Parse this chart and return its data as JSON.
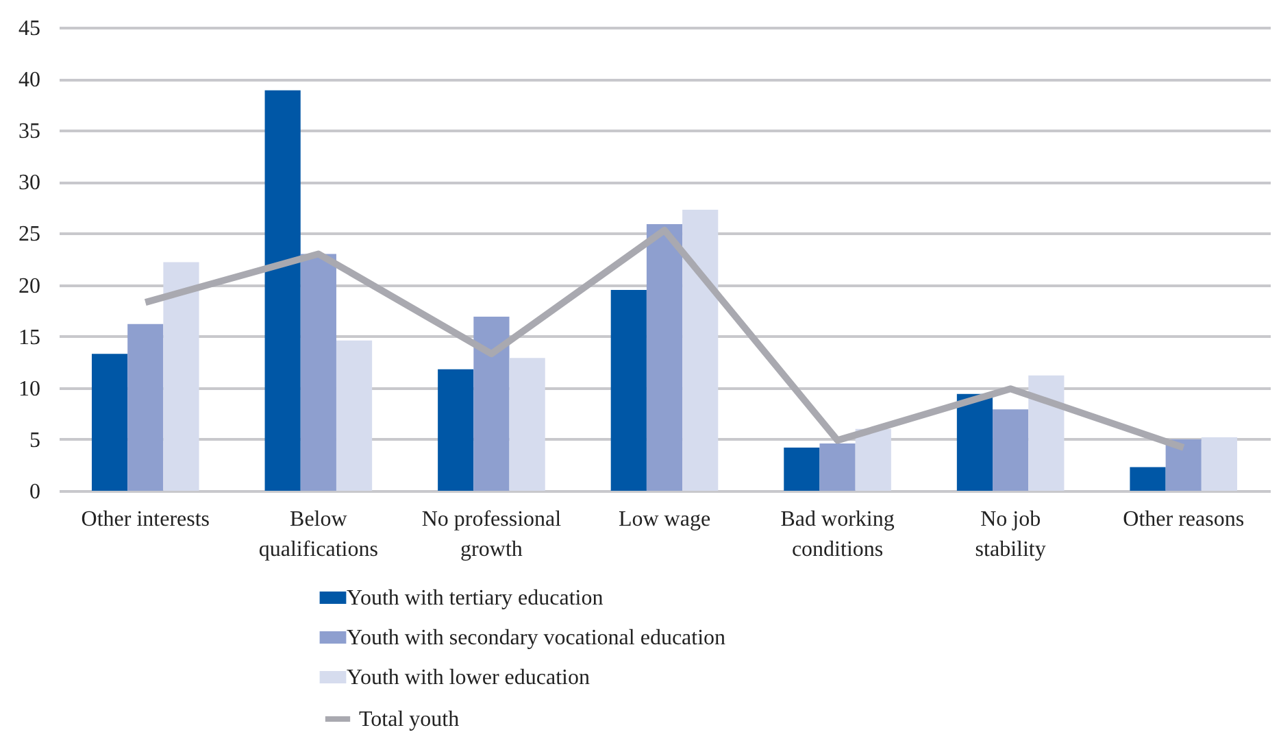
{
  "chart_data": {
    "type": "bar",
    "categories": [
      "Other interests",
      "Below qualifications",
      "No professional growth",
      "Low wage",
      "Bad working conditions",
      "No job stability",
      "Other reasons"
    ],
    "series": [
      {
        "name": "Youth with tertiary education",
        "color": "#0057a6",
        "values": [
          13.3,
          38.9,
          11.8,
          19.5,
          4.2,
          9.4,
          2.3
        ]
      },
      {
        "name": "Youth with secondary vocational education",
        "color": "#8e9fcf",
        "values": [
          16.2,
          23.0,
          16.9,
          25.9,
          4.6,
          7.9,
          5.0
        ]
      },
      {
        "name": "Youth with lower education",
        "color": "#d6dcee",
        "values": [
          22.2,
          14.6,
          12.9,
          27.3,
          6.0,
          11.2,
          5.2
        ]
      },
      {
        "name": "Total youth",
        "color": "#a9a9b0",
        "type": "line",
        "values": [
          18.3,
          23.0,
          13.3,
          25.3,
          4.9,
          9.9,
          4.2
        ]
      }
    ],
    "ylim": [
      0,
      45
    ],
    "yticks": [
      0,
      5,
      10,
      15,
      20,
      25,
      30,
      35,
      40,
      45
    ],
    "grid": "y",
    "legend": "bottom",
    "marker": "none",
    "line_style": "solid"
  }
}
